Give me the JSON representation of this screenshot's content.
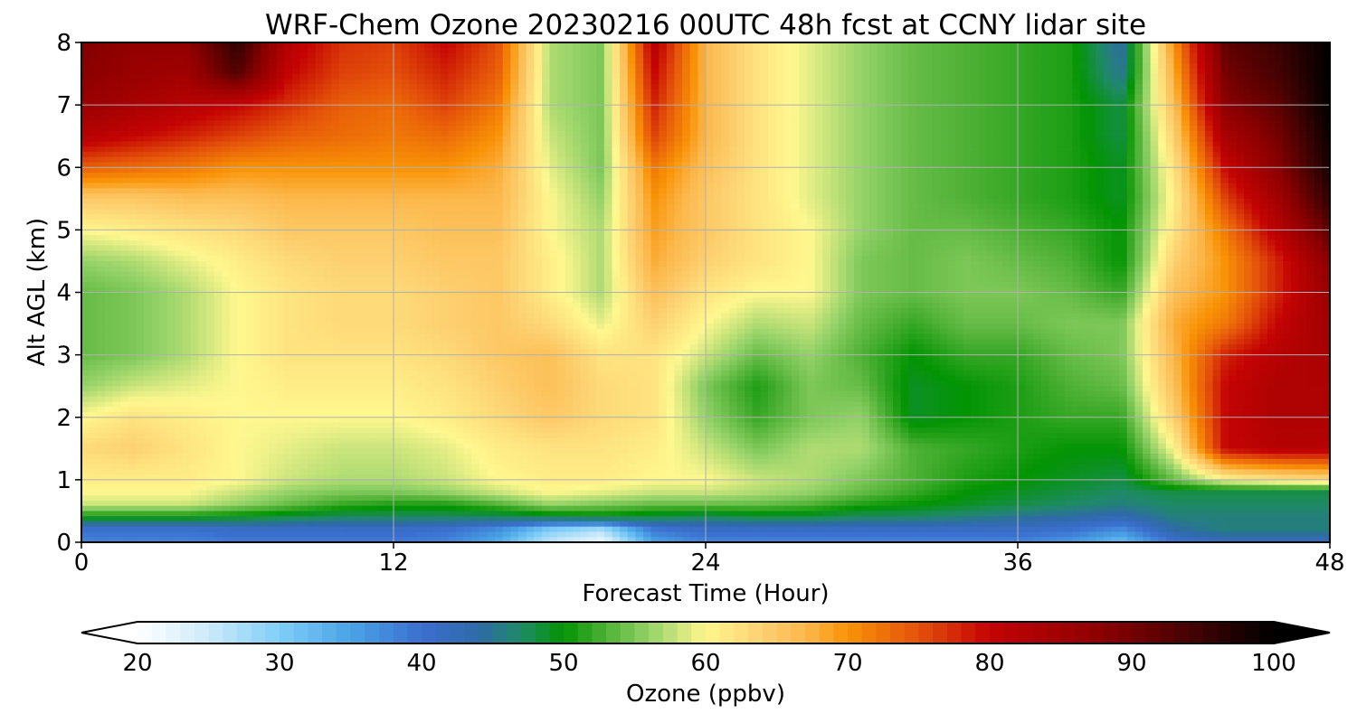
{
  "chart_data": {
    "type": "heatmap",
    "title": "WRF-Chem Ozone  20230216 00UTC 48h fcst at CCNY lidar site",
    "xlabel": "Forecast Time (Hour)",
    "ylabel": "Alt AGL (km)",
    "xlim": [
      0,
      48
    ],
    "ylim": [
      0,
      8
    ],
    "xticks": [
      0,
      12,
      24,
      36,
      48
    ],
    "yticks": [
      0,
      1,
      2,
      3,
      4,
      5,
      6,
      7,
      8
    ],
    "grid": true,
    "x": [
      0,
      2,
      4,
      6,
      8,
      10,
      12,
      14,
      16,
      18,
      20,
      22,
      24,
      26,
      28,
      30,
      32,
      34,
      36,
      38,
      40,
      42,
      44,
      46,
      48
    ],
    "y": [
      0,
      0.2,
      0.4,
      0.6,
      0.8,
      1.0,
      1.5,
      2.0,
      2.5,
      3.0,
      3.5,
      4.0,
      4.5,
      5.0,
      5.5,
      6.0,
      6.5,
      7.0,
      7.5,
      8.0
    ],
    "z_rows_by_y": [
      [
        38,
        38,
        38,
        39,
        39,
        39,
        39,
        38,
        34,
        26,
        22,
        35,
        38,
        38,
        38,
        38,
        38,
        38,
        38,
        36,
        32,
        40,
        42,
        42,
        42
      ],
      [
        40,
        40,
        40,
        41,
        41,
        41,
        41,
        40,
        37,
        30,
        27,
        39,
        41,
        41,
        41,
        41,
        41,
        41,
        41,
        40,
        37,
        44,
        46,
        46,
        46
      ],
      [
        50,
        50,
        50,
        49,
        48,
        47,
        47,
        47,
        47,
        48,
        49,
        48,
        47,
        48,
        48,
        47,
        47,
        46,
        45,
        44,
        43,
        46,
        46,
        46,
        46
      ],
      [
        58,
        58,
        58,
        56,
        54,
        52,
        51,
        51,
        53,
        56,
        55,
        54,
        54,
        54,
        53,
        51,
        50,
        49,
        48,
        47,
        46,
        47,
        47,
        47,
        47
      ],
      [
        60,
        60,
        60,
        58,
        56,
        55,
        55,
        56,
        58,
        60,
        59,
        58,
        58,
        57,
        56,
        54,
        52,
        50,
        49,
        48,
        47,
        48,
        48,
        48,
        48
      ],
      [
        61,
        61,
        61,
        60,
        58,
        57,
        57,
        58,
        60,
        61,
        61,
        60,
        60,
        58,
        57,
        55,
        53,
        51,
        50,
        49,
        48,
        54,
        60,
        62,
        63
      ],
      [
        63,
        64,
        62,
        60,
        59,
        58,
        58,
        59,
        61,
        62,
        62,
        61,
        58,
        55,
        57,
        57,
        53,
        52,
        51,
        50,
        50,
        60,
        80,
        82,
        82
      ],
      [
        60,
        62,
        61,
        60,
        60,
        60,
        60,
        61,
        63,
        65,
        63,
        62,
        56,
        52,
        55,
        56,
        49,
        50,
        51,
        52,
        52,
        64,
        80,
        83,
        83
      ],
      [
        56,
        58,
        59,
        60,
        61,
        61,
        61,
        62,
        64,
        66,
        63,
        62,
        55,
        51,
        55,
        54,
        49,
        50,
        51,
        53,
        54,
        66,
        80,
        83,
        83
      ],
      [
        54,
        55,
        57,
        60,
        62,
        62,
        62,
        63,
        65,
        66,
        62,
        62,
        58,
        54,
        56,
        53,
        50,
        52,
        52,
        54,
        55,
        67,
        78,
        82,
        84
      ],
      [
        54,
        55,
        57,
        60,
        62,
        63,
        63,
        64,
        65,
        63,
        59,
        64,
        60,
        57,
        58,
        54,
        52,
        54,
        54,
        55,
        55,
        68,
        72,
        80,
        85
      ],
      [
        54,
        55,
        57,
        60,
        62,
        63,
        63,
        64,
        65,
        61,
        57,
        66,
        62,
        60,
        60,
        55,
        54,
        55,
        55,
        54,
        52,
        66,
        70,
        78,
        86
      ],
      [
        56,
        57,
        59,
        61,
        63,
        64,
        64,
        65,
        65,
        61,
        57,
        68,
        64,
        62,
        60,
        55,
        54,
        55,
        54,
        53,
        50,
        64,
        70,
        78,
        88
      ],
      [
        60,
        61,
        62,
        63,
        65,
        65,
        65,
        66,
        66,
        60,
        57,
        69,
        65,
        62,
        60,
        56,
        54,
        54,
        53,
        52,
        50,
        62,
        72,
        82,
        92
      ],
      [
        65,
        65,
        66,
        66,
        67,
        67,
        67,
        67,
        67,
        60,
        56,
        70,
        65,
        62,
        59,
        56,
        54,
        53,
        52,
        51,
        49,
        61,
        76,
        85,
        96
      ],
      [
        74,
        73,
        72,
        70,
        70,
        70,
        70,
        70,
        68,
        59,
        55,
        72,
        66,
        62,
        59,
        56,
        54,
        53,
        52,
        51,
        49,
        62,
        80,
        88,
        98
      ],
      [
        82,
        80,
        78,
        76,
        74,
        73,
        72,
        73,
        70,
        58,
        55,
        76,
        67,
        62,
        59,
        56,
        54,
        53,
        52,
        51,
        48,
        64,
        84,
        90,
        99
      ],
      [
        86,
        84,
        82,
        80,
        77,
        74,
        73,
        76,
        72,
        57,
        55,
        78,
        67,
        62,
        59,
        56,
        54,
        53,
        52,
        51,
        48,
        66,
        88,
        92,
        100
      ],
      [
        88,
        86,
        85,
        93,
        80,
        76,
        75,
        78,
        74,
        57,
        55,
        80,
        67,
        62,
        59,
        56,
        54,
        53,
        52,
        51,
        45,
        68,
        90,
        94,
        100
      ],
      [
        89,
        87,
        87,
        96,
        82,
        77,
        76,
        80,
        75,
        57,
        55,
        82,
        67,
        62,
        59,
        56,
        54,
        53,
        52,
        51,
        44,
        70,
        92,
        95,
        100
      ]
    ],
    "colorbar": {
      "label": "Ozone  (ppbv)",
      "min": 20,
      "max": 100,
      "ticks": [
        20,
        30,
        40,
        50,
        60,
        70,
        80,
        90,
        100
      ],
      "extend": "both",
      "colors": [
        {
          "v": 20,
          "c": "#ffffff"
        },
        {
          "v": 25,
          "c": "#cdeafa"
        },
        {
          "v": 30,
          "c": "#80cef8"
        },
        {
          "v": 35,
          "c": "#4aa3e6"
        },
        {
          "v": 40,
          "c": "#3b6fcf"
        },
        {
          "v": 44,
          "c": "#2f6aa8"
        },
        {
          "v": 47,
          "c": "#1f8a66"
        },
        {
          "v": 50,
          "c": "#039403"
        },
        {
          "v": 53,
          "c": "#4fb136"
        },
        {
          "v": 56,
          "c": "#94d268"
        },
        {
          "v": 60,
          "c": "#fff78f"
        },
        {
          "v": 64,
          "c": "#fdd070"
        },
        {
          "v": 67,
          "c": "#fcb84c"
        },
        {
          "v": 70,
          "c": "#f99206"
        },
        {
          "v": 75,
          "c": "#e4510a"
        },
        {
          "v": 80,
          "c": "#c40303"
        },
        {
          "v": 88,
          "c": "#8b0000"
        },
        {
          "v": 95,
          "c": "#3a0202"
        },
        {
          "v": 100,
          "c": "#000000"
        }
      ]
    }
  }
}
